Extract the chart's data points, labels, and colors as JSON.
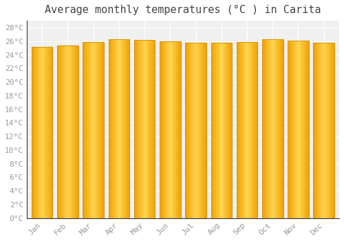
{
  "title": "Average monthly temperatures (°C ) in Carita",
  "months": [
    "Jan",
    "Feb",
    "Mar",
    "Apr",
    "May",
    "Jun",
    "Jul",
    "Aug",
    "Sep",
    "Oct",
    "Nov",
    "Dec"
  ],
  "values": [
    25.2,
    25.4,
    25.9,
    26.3,
    26.2,
    26.0,
    25.8,
    25.8,
    25.9,
    26.3,
    26.1,
    25.8
  ],
  "bar_color_left": "#F5A800",
  "bar_color_center": "#FFD040",
  "bar_edge_color": "#D4920A",
  "background_color": "#ffffff",
  "plot_bg_color": "#f0f0f0",
  "grid_color": "#ffffff",
  "yticks": [
    0,
    2,
    4,
    6,
    8,
    10,
    12,
    14,
    16,
    18,
    20,
    22,
    24,
    26,
    28
  ],
  "ylim": [
    0,
    29
  ],
  "tick_label_color": "#999999",
  "title_color": "#444444",
  "title_fontsize": 11,
  "tick_fontsize": 8.0
}
